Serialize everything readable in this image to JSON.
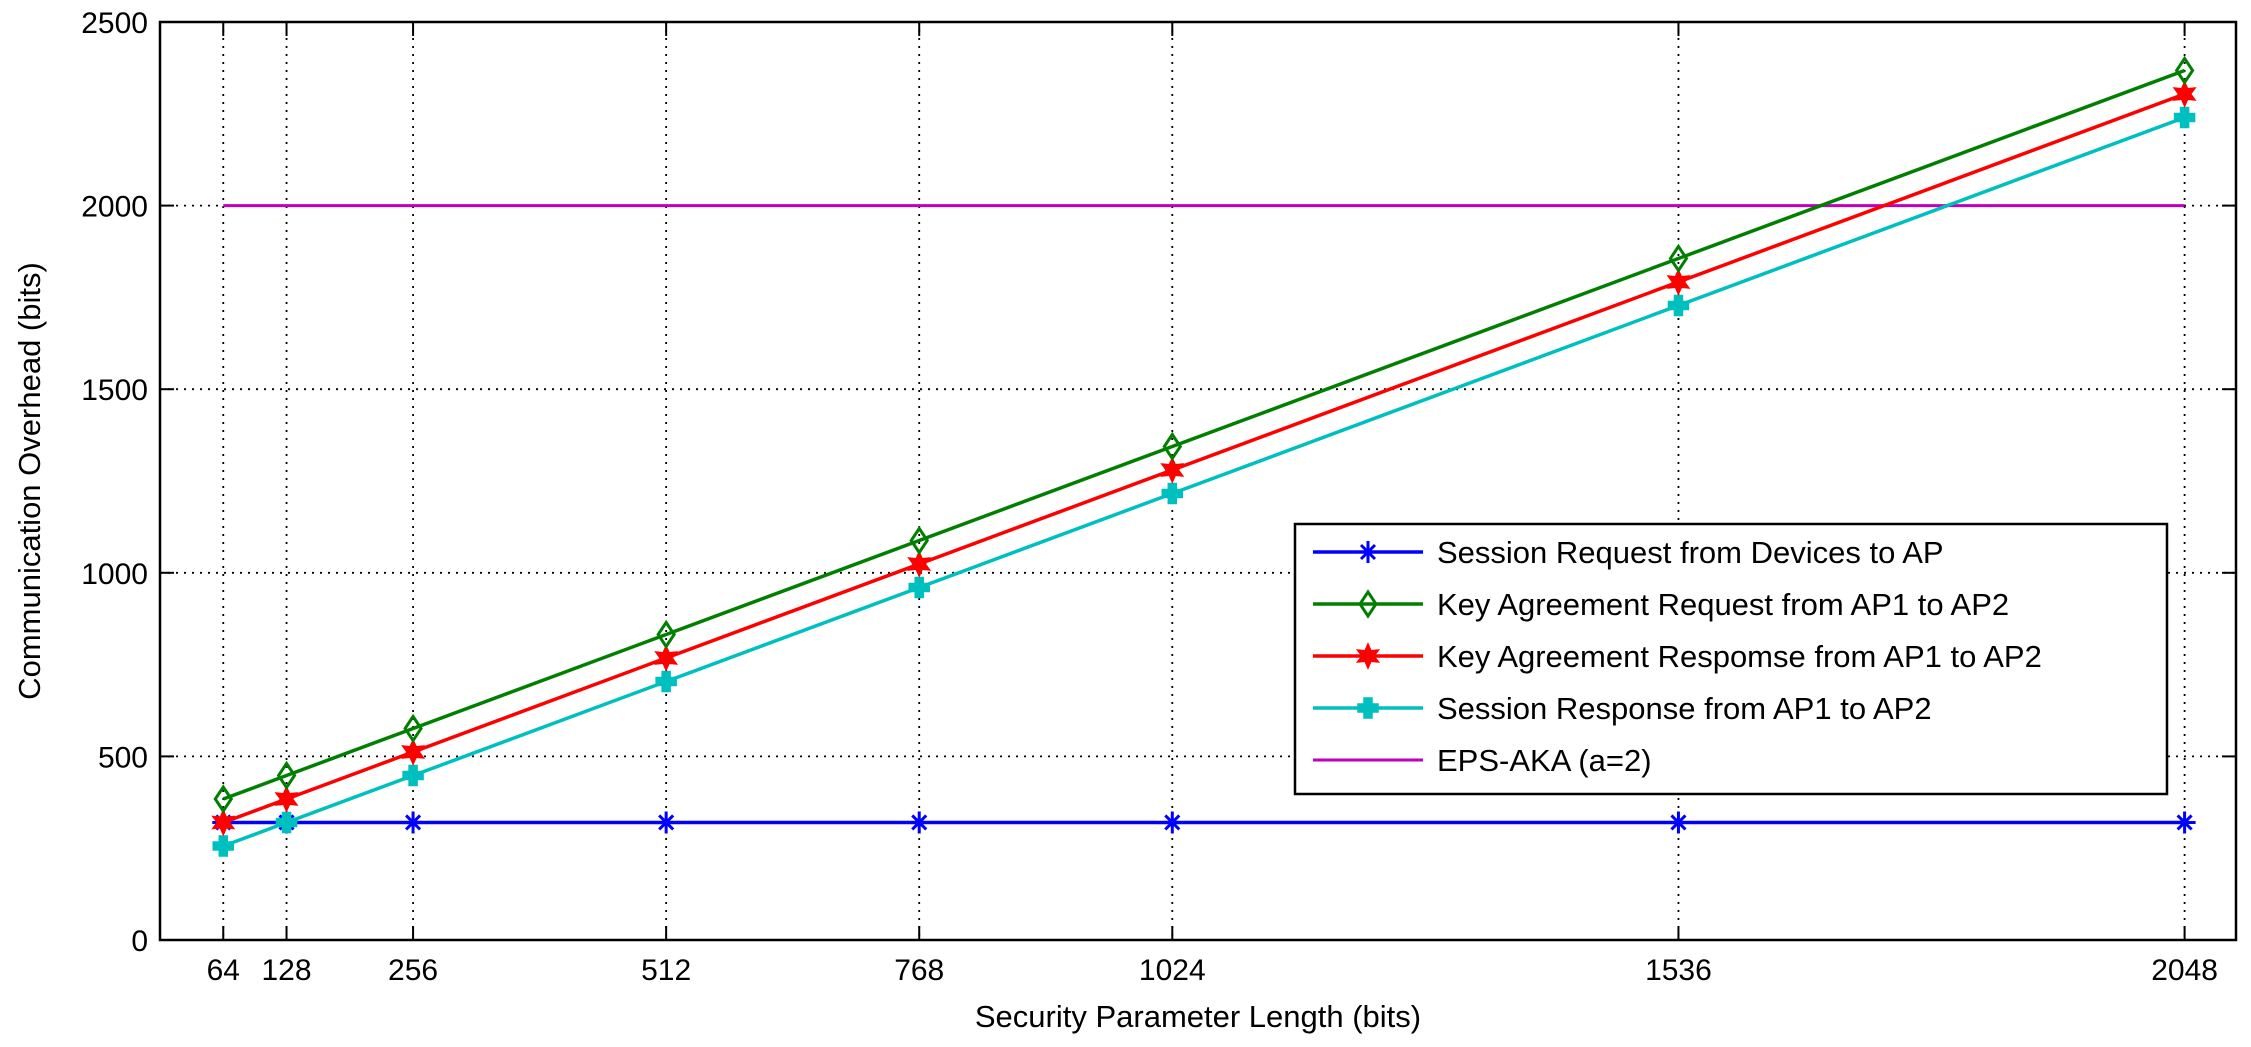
{
  "chart_data": {
    "type": "line",
    "title": "",
    "xlabel": "Security Parameter Length (bits)",
    "ylabel": "Communication Overhead (bits)",
    "xlim": [
      0,
      2100
    ],
    "ylim": [
      0,
      2500
    ],
    "xticks": [
      64,
      128,
      256,
      512,
      768,
      1024,
      1536,
      2048
    ],
    "yticks": [
      0,
      500,
      1000,
      1500,
      2000,
      2500
    ],
    "grid": true,
    "legend_position": "lower-right",
    "x": [
      64,
      128,
      256,
      512,
      768,
      1024,
      1536,
      2048
    ],
    "series": [
      {
        "name": "Session Request from Devices to AP",
        "color": "#0000ff",
        "marker": "asterisk",
        "values": [
          320,
          320,
          320,
          320,
          320,
          320,
          320,
          320
        ]
      },
      {
        "name": "Key Agreement Request from AP1 to AP2",
        "color": "#007f00",
        "marker": "diamond",
        "values": [
          384,
          448,
          576,
          832,
          1088,
          1344,
          1856,
          2368
        ]
      },
      {
        "name": "Key Agreement Respomse from AP1 to AP2",
        "color": "#ff0000",
        "marker": "hexagram",
        "values": [
          320,
          384,
          512,
          768,
          1024,
          1280,
          1792,
          2304
        ]
      },
      {
        "name": "Session Response from AP1 to AP2",
        "color": "#00bfbf",
        "marker": "cross",
        "values": [
          256,
          320,
          448,
          704,
          960,
          1216,
          1728,
          2240
        ]
      },
      {
        "name": "EPS-AKA (a=2)",
        "color": "#bf00bf",
        "marker": "none",
        "values": [
          2000,
          2000,
          2000,
          2000,
          2000,
          2000,
          2000,
          2000
        ]
      }
    ]
  }
}
